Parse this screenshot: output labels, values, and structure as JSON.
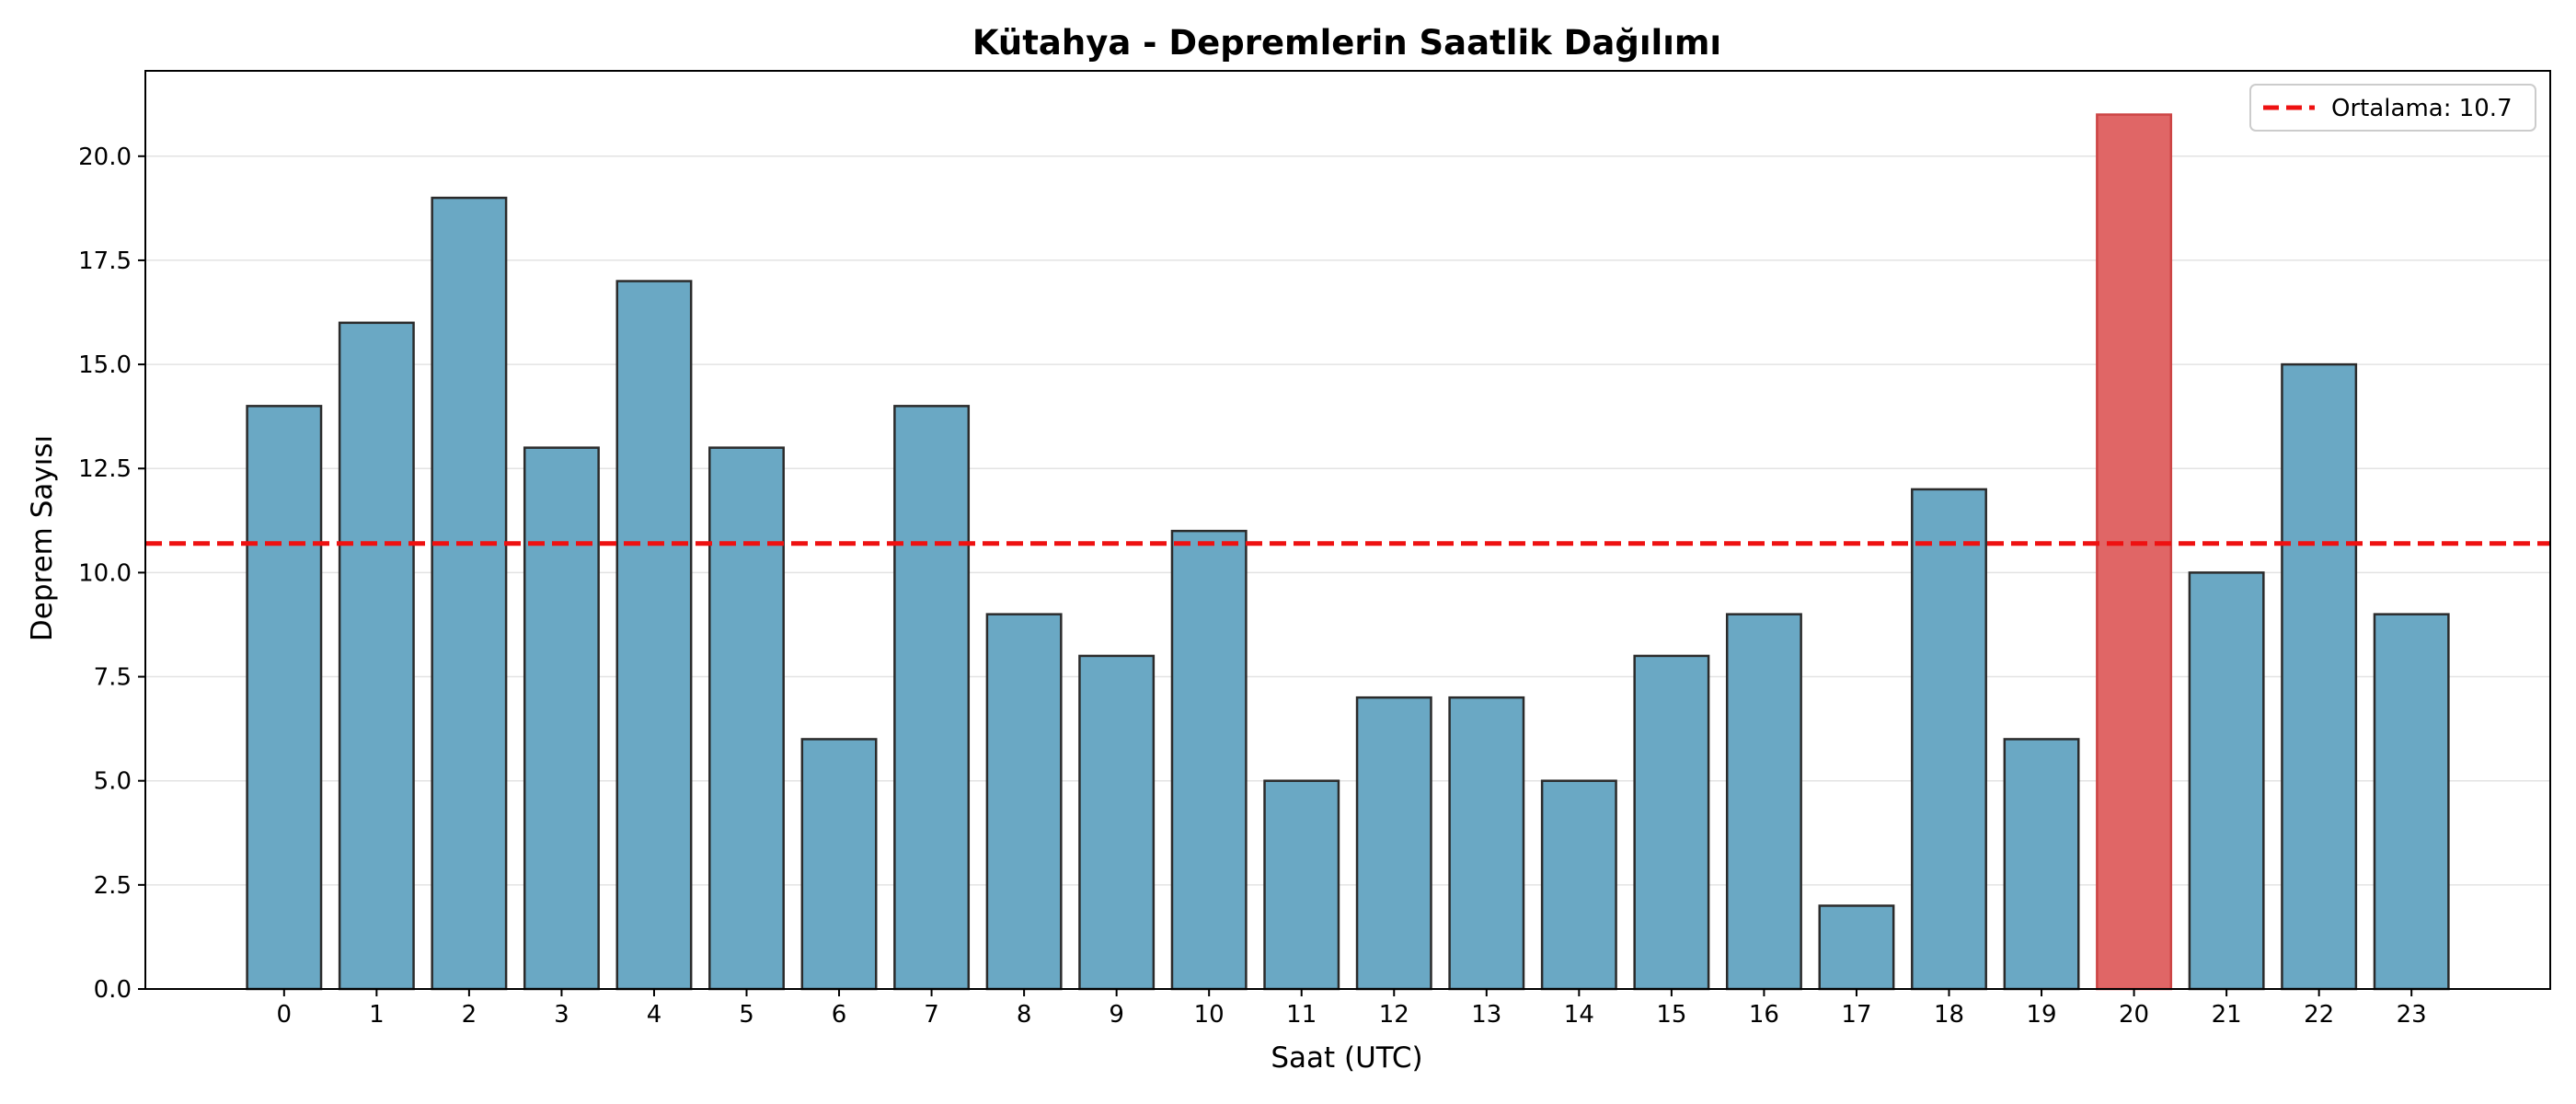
{
  "chart_data": {
    "type": "bar",
    "title": "Kütahya - Depremlerin Saatlik Dağılımı",
    "xlabel": "Saat (UTC)",
    "ylabel": "Deprem Sayısı",
    "categories": [
      "0",
      "1",
      "2",
      "3",
      "4",
      "5",
      "6",
      "7",
      "8",
      "9",
      "10",
      "11",
      "12",
      "13",
      "14",
      "15",
      "16",
      "17",
      "18",
      "19",
      "20",
      "21",
      "22",
      "23"
    ],
    "values": [
      14,
      16,
      19,
      13,
      17,
      13,
      6,
      14,
      9,
      8,
      11,
      5,
      7,
      7,
      5,
      8,
      9,
      2,
      12,
      6,
      21,
      10,
      15,
      9
    ],
    "highlight_index": 20,
    "mean": 10.7,
    "legend": {
      "label": "Ortalama: 10.7",
      "placement": "top-right"
    },
    "ylim": [
      0,
      22.05
    ],
    "yticks": [
      "0.0",
      "2.5",
      "5.0",
      "7.5",
      "10.0",
      "12.5",
      "15.0",
      "17.5",
      "20.0"
    ],
    "grid": "y",
    "colors": {
      "bar": "#6aa8c4",
      "highlight": "#e06666",
      "mean_line": "#ee1111",
      "edge": "#2b2b2b"
    }
  }
}
